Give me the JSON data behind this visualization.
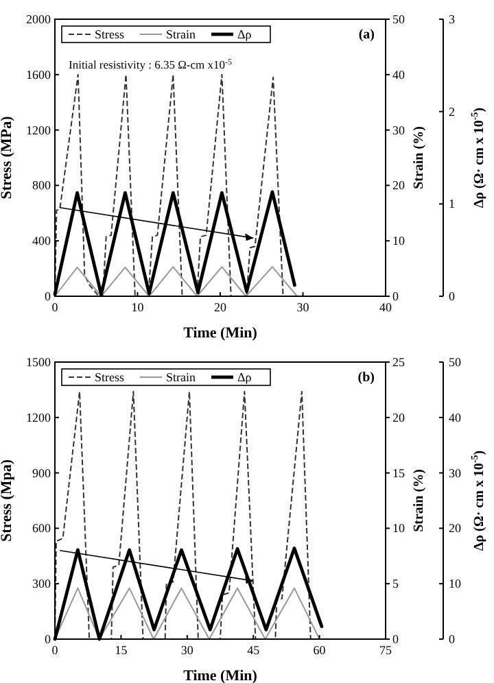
{
  "chart_data": [
    {
      "type": "line",
      "xlabel": "Time (Min)",
      "ylabel": "Stress (MPa)",
      "y2label": "Strain (%)",
      "y3label": "Δρ  (Ω· cm x 10$^{-5}$)",
      "xlim": [
        0,
        40
      ],
      "xticks": [
        0,
        10,
        20,
        30,
        40
      ],
      "ylim": [
        0,
        2000
      ],
      "yticks": [
        0,
        400,
        800,
        1200,
        1600,
        2000
      ],
      "y2lim": [
        0,
        50
      ],
      "y2ticks": [
        0,
        10,
        20,
        30,
        40,
        50
      ],
      "y3lim": [
        0,
        3
      ],
      "y3ticks": [
        0,
        1,
        2,
        3
      ],
      "legend": "top left",
      "grid": false,
      "annotations": [
        "(a)",
        "Initial resistivity : 6.35  Ω-cm x10$^{-5}$"
      ],
      "series": [
        {
          "name": "Stress",
          "color": "#333333",
          "line_style": "dashed",
          "x": [
            0,
            0.2,
            0.6,
            2.8,
            3.6,
            4.2,
            5.3,
            5.8,
            6.2,
            6.8,
            8.6,
            9.7,
            11.3,
            11.8,
            12.4,
            14.3,
            15.4,
            17.2,
            17.6,
            18.3,
            20.2,
            21.3,
            23.2,
            23.6,
            24.2,
            26.4,
            27.6,
            29.5
          ],
          "values": [
            0,
            620,
            630,
            1600,
            150,
            80,
            0,
            0,
            430,
            440,
            1600,
            0,
            0,
            430,
            440,
            1600,
            0,
            0,
            430,
            440,
            1600,
            0,
            0,
            350,
            360,
            1580,
            0,
            0
          ]
        },
        {
          "name": "Strain",
          "color": "#999999",
          "line_style": "solid",
          "axis": "y2",
          "x": [
            0,
            2.7,
            5.6,
            8.5,
            11.4,
            14.3,
            17.2,
            20.2,
            23.1,
            26.3,
            29.3
          ],
          "values": [
            0,
            5.2,
            0,
            5.2,
            0,
            5.3,
            0,
            5.3,
            0,
            5.3,
            0
          ]
        },
        {
          "name": "Δρ",
          "color": "#000000",
          "line_style": "solid",
          "axis": "y3",
          "x": [
            0,
            2.7,
            5.6,
            8.5,
            11.4,
            14.3,
            17.3,
            20.2,
            23.2,
            26.3,
            29
          ],
          "values": [
            0.02,
            1.12,
            0.02,
            1.12,
            0.03,
            1.12,
            0.04,
            1.12,
            0.05,
            1.13,
            0.12
          ]
        }
      ]
    },
    {
      "type": "line",
      "xlabel": "Time (Min)",
      "ylabel": "Stress (Mpa)",
      "y2label": "Strain (%)",
      "y3label": "Δρ  (Ω· cm x 10$^{-5}$)",
      "xlim": [
        0,
        75
      ],
      "xticks": [
        0,
        15,
        30,
        45,
        60,
        75
      ],
      "ylim": [
        0,
        1500
      ],
      "yticks": [
        0,
        300,
        600,
        900,
        1200,
        1500
      ],
      "y2lim": [
        0,
        25
      ],
      "y2ticks": [
        0,
        5,
        10,
        15,
        20,
        25
      ],
      "y3lim": [
        0,
        50
      ],
      "y3ticks": [
        0,
        10,
        20,
        30,
        40,
        50
      ],
      "legend": "top left",
      "grid": false,
      "annotations": [
        "(b)"
      ],
      "series": [
        {
          "name": "Stress",
          "color": "#333333",
          "line_style": "dashed",
          "x": [
            0,
            0.3,
            1.8,
            5.6,
            7.8,
            12.8,
            13.2,
            14.5,
            17.8,
            20,
            25,
            25.3,
            26.8,
            30.5,
            32.5,
            37.5,
            38,
            39.5,
            43,
            45.5,
            50,
            50.3,
            51.5,
            56,
            58,
            60
          ],
          "values": [
            0,
            530,
            545,
            1340,
            0,
            0,
            390,
            400,
            1340,
            0,
            0,
            300,
            310,
            1340,
            0,
            0,
            240,
            250,
            1340,
            0,
            0,
            210,
            220,
            1340,
            0,
            0
          ]
        },
        {
          "name": "Strain",
          "color": "#999999",
          "line_style": "solid",
          "axis": "y2",
          "x": [
            0,
            5.2,
            10.1,
            16.9,
            22.4,
            28.7,
            35,
            41.4,
            47.7,
            54.3,
            60
          ],
          "values": [
            0,
            4.6,
            0,
            4.6,
            0,
            4.6,
            0,
            4.6,
            0,
            4.6,
            0
          ]
        },
        {
          "name": "Δρ",
          "color": "#000000",
          "line_style": "solid",
          "axis": "y3",
          "x": [
            0,
            5.2,
            10.1,
            16.9,
            22.5,
            28.7,
            35.2,
            41.4,
            47.9,
            54.3,
            60.5
          ],
          "values": [
            0,
            16.1,
            0,
            16.1,
            1.7,
            16.1,
            1.7,
            16.3,
            1.7,
            16.4,
            2.3
          ]
        }
      ]
    }
  ]
}
